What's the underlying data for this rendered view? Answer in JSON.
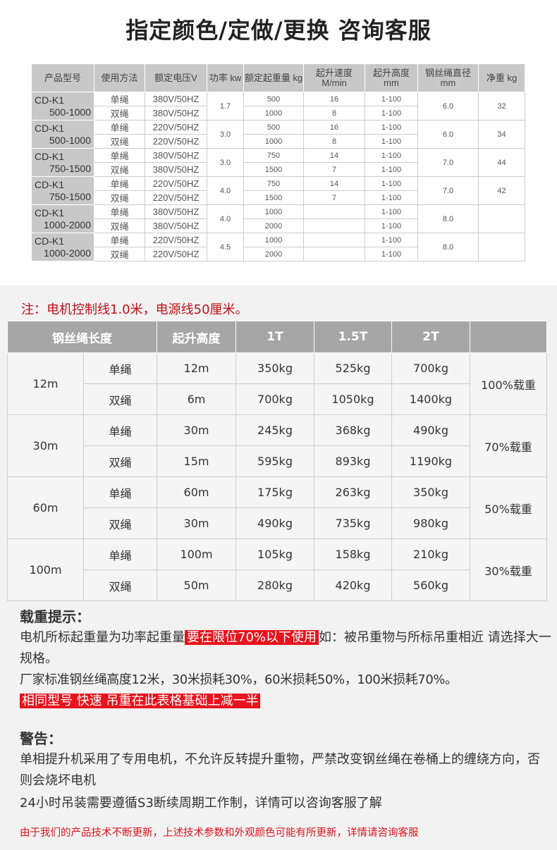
{
  "title": "指定颜色/定做/更换 咨询客服",
  "spec_table": {
    "headers": [
      "产品型号",
      "使用方法",
      "额定电压V",
      "功率 kw",
      "额定起重量 kg",
      "起升速度 M/min",
      "起升高度 mm",
      "钢丝绳直径 mm",
      "净重 kg"
    ],
    "groups": [
      {
        "model": "CD-K1",
        "range": "500-1000",
        "power": "1.7",
        "dia": "6.0",
        "weight": "32",
        "rows": [
          {
            "method": "单绳",
            "voltage": "380V/50HZ",
            "load": "500",
            "speed": "16",
            "height": "1-100"
          },
          {
            "method": "双绳",
            "voltage": "380V/50HZ",
            "load": "1000",
            "speed": "8",
            "height": "1-100"
          }
        ]
      },
      {
        "model": "CD-K1",
        "range": "500-1000",
        "power": "3.0",
        "dia": "6.0",
        "weight": "34",
        "rows": [
          {
            "method": "单绳",
            "voltage": "220V/50HZ",
            "load": "500",
            "speed": "16",
            "height": "1-100"
          },
          {
            "method": "双绳",
            "voltage": "220V/50HZ",
            "load": "1000",
            "speed": "8",
            "height": "1-100"
          }
        ]
      },
      {
        "model": "CD-K1",
        "range": "750-1500",
        "power": "3.0",
        "dia": "7.0",
        "weight": "44",
        "rows": [
          {
            "method": "单绳",
            "voltage": "380V/50HZ",
            "load": "750",
            "speed": "14",
            "height": "1-100"
          },
          {
            "method": "双绳",
            "voltage": "380V/50HZ",
            "load": "1500",
            "speed": "7",
            "height": "1-100"
          }
        ]
      },
      {
        "model": "CD-K1",
        "range": "750-1500",
        "power": "4.0",
        "dia": "7.0",
        "weight": "42",
        "rows": [
          {
            "method": "单绳",
            "voltage": "220V/50HZ",
            "load": "750",
            "speed": "14",
            "height": "1-100"
          },
          {
            "method": "双绳",
            "voltage": "220V/50HZ",
            "load": "1500",
            "speed": "7",
            "height": "1-100"
          }
        ]
      },
      {
        "model": "CD-K1",
        "range": "1000-2000",
        "power": "4.0",
        "dia": "8.0",
        "weight": "",
        "rows": [
          {
            "method": "单绳",
            "voltage": "380V/50HZ",
            "load": "1000",
            "speed": "",
            "height": "1-100"
          },
          {
            "method": "双绳",
            "voltage": "380V/50HZ",
            "load": "2000",
            "speed": "",
            "height": "1-100"
          }
        ]
      },
      {
        "model": "CD-K1",
        "range": "1000-2000",
        "power": "4.5",
        "dia": "8.0",
        "weight": "",
        "rows": [
          {
            "method": "单绳",
            "voltage": "220V/50HZ",
            "load": "1000",
            "speed": "",
            "height": "1-100"
          },
          {
            "method": "双绳",
            "voltage": "220V/50HZ",
            "load": "2000",
            "speed": "",
            "height": "1-100"
          }
        ]
      }
    ]
  },
  "note": "注：电机控制线1.0米，电源线50厘米。",
  "load_table": {
    "headers": [
      "钢丝绳长度",
      "起升高度",
      "1T",
      "1.5T",
      "2T"
    ],
    "groups": [
      {
        "length": "12m",
        "ratio": "100%载重",
        "rows": [
          {
            "method": "单绳",
            "height": "12m",
            "t1": "350kg",
            "t15": "525kg",
            "t2": "700kg"
          },
          {
            "method": "双绳",
            "height": "6m",
            "t1": "700kg",
            "t15": "1050kg",
            "t2": "1400kg"
          }
        ]
      },
      {
        "length": "30m",
        "ratio": "70%载重",
        "rows": [
          {
            "method": "单绳",
            "height": "30m",
            "t1": "245kg",
            "t15": "368kg",
            "t2": "490kg"
          },
          {
            "method": "双绳",
            "height": "15m",
            "t1": "595kg",
            "t15": "893kg",
            "t2": "1190kg"
          }
        ]
      },
      {
        "length": "60m",
        "ratio": "50%载重",
        "rows": [
          {
            "method": "单绳",
            "height": "60m",
            "t1": "175kg",
            "t15": "263kg",
            "t2": "350kg"
          },
          {
            "method": "双绳",
            "height": "30m",
            "t1": "490kg",
            "t15": "735kg",
            "t2": "980kg"
          }
        ]
      },
      {
        "length": "100m",
        "ratio": "30%载重",
        "rows": [
          {
            "method": "单绳",
            "height": "100m",
            "t1": "105kg",
            "t15": "158kg",
            "t2": "210kg"
          },
          {
            "method": "双绳",
            "height": "50m",
            "t1": "280kg",
            "t15": "420kg",
            "t2": "560kg"
          }
        ]
      }
    ]
  },
  "tips": {
    "heading": "载重提示：",
    "p1a": "电机所标起重量为功率起重量",
    "p1hl": "要在限位70%以下使用",
    "p1b": "如：被吊重物与所标吊重相近 请选择大一规格。",
    "p2": "厂家标准钢丝绳高度12米，30米损耗30%，60米损耗50%，100米损耗70%。",
    "p3hl": "相同型号 快速 吊重在此表格基础上减一半"
  },
  "warning": {
    "heading": "警告：",
    "p1": "单相提升机采用了专用电机，不允许反转提升重物，严禁改变钢丝绳在卷桶上的缠绕方向，否则会烧坏电机",
    "p2": "24小时吊装需要遵循S3断续周期工作制，详情可以咨询客服了解"
  },
  "footer": "由于我们的产品技术不断更新，上述技术参数和外观颜色可能有所更新，详情请咨询客服",
  "colors": {
    "accent_red": "#e8131c",
    "header_gray": "#a6a6a6"
  }
}
